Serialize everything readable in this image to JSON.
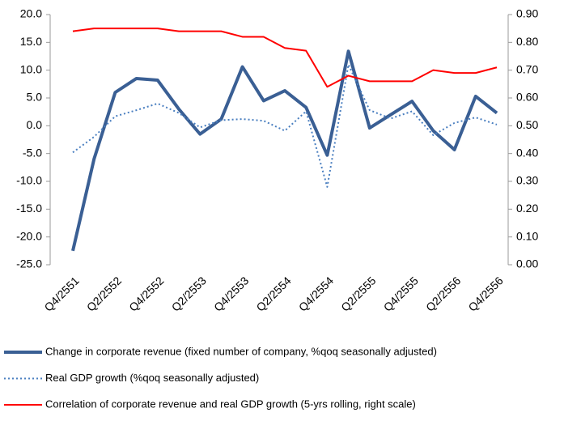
{
  "chart_data": {
    "type": "line",
    "categories": [
      "Q4/2551",
      null,
      "Q2/2552",
      null,
      "Q4/2552",
      null,
      "Q2/2553",
      null,
      "Q4/2553",
      null,
      "Q2/2554",
      null,
      "Q4/2554",
      null,
      "Q2/2555",
      null,
      "Q4/2555",
      null,
      "Q2/2556",
      null,
      "Q4/2556"
    ],
    "series": [
      {
        "name": "Change in corporate revenue (fixed number of company, %qoq seasonally adjusted)",
        "color": "#3a5f94",
        "style": "solid",
        "values": [
          -22.5,
          -6.0,
          6.0,
          8.5,
          8.2,
          3.0,
          -1.5,
          1.2,
          10.6,
          4.5,
          6.3,
          3.3,
          -5.3,
          13.4,
          -0.4,
          2.0,
          4.4,
          -0.9,
          -4.3,
          5.3,
          2.3
        ]
      },
      {
        "name": "Real GDP growth (%qoq seasonally adjusted)",
        "color": "#4a7fc0",
        "style": "dotted",
        "values": [
          -4.8,
          -2.0,
          1.7,
          2.8,
          4.0,
          2.3,
          -0.3,
          1.0,
          1.2,
          0.9,
          -0.9,
          2.6,
          -11.0,
          11.0,
          2.8,
          1.3,
          2.6,
          -1.7,
          0.5,
          1.5,
          0.2
        ]
      },
      {
        "name": "Correlation of corporate revenue and real GDP growth (5-yrs rolling, right scale)",
        "color": "#ff0000",
        "style": "solid",
        "axis": "y2",
        "values": [
          0.84,
          0.85,
          0.85,
          0.85,
          0.85,
          0.84,
          0.84,
          0.84,
          0.82,
          0.82,
          0.78,
          0.77,
          0.64,
          0.68,
          0.66,
          0.66,
          0.66,
          0.7,
          0.69,
          0.69,
          0.71
        ]
      }
    ],
    "ylim": [
      -25,
      20
    ],
    "yticks": [
      {
        "value": -25,
        "label": "-25.0"
      },
      {
        "value": -20,
        "label": "-20.0"
      },
      {
        "value": -15,
        "label": "-15.0"
      },
      {
        "value": -10,
        "label": "-10.0"
      },
      {
        "value": -5,
        "label": "-5.0"
      },
      {
        "value": 0,
        "label": "0.0"
      },
      {
        "value": 5,
        "label": "5.0"
      },
      {
        "value": 10,
        "label": "10.0"
      },
      {
        "value": 15,
        "label": "15.0"
      },
      {
        "value": 20,
        "label": "20.0"
      }
    ],
    "y2lim": [
      0,
      0.9
    ],
    "y2ticks": [
      {
        "value": 0,
        "label": "0.00"
      },
      {
        "value": 0.1,
        "label": "0.10"
      },
      {
        "value": 0.2,
        "label": "0.20"
      },
      {
        "value": 0.3,
        "label": "0.30"
      },
      {
        "value": 0.4,
        "label": "0.40"
      },
      {
        "value": 0.5,
        "label": "0.50"
      },
      {
        "value": 0.6,
        "label": "0.60"
      },
      {
        "value": 0.7,
        "label": "0.70"
      },
      {
        "value": 0.8,
        "label": "0.80"
      },
      {
        "value": 0.9,
        "label": "0.90"
      }
    ],
    "grid": false,
    "legend": "bottom"
  }
}
